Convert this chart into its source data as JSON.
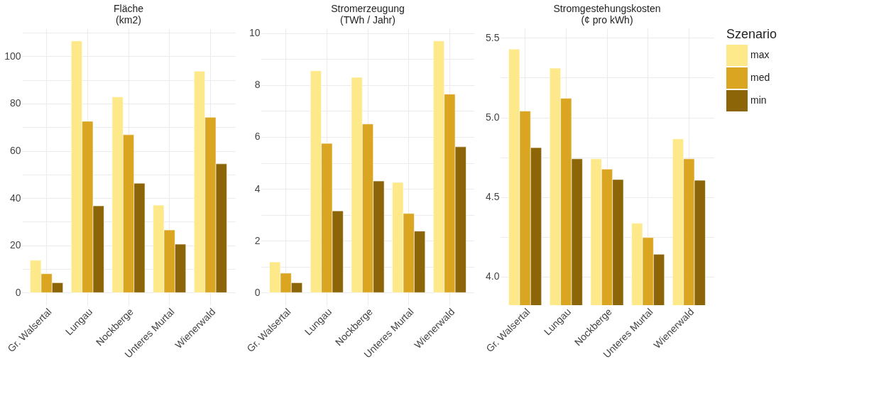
{
  "chart_data": [
    {
      "type": "bar",
      "title": "Fläche\n(km2)",
      "categories": [
        "Gr. Walsertal",
        "Lungau",
        "Nockberge",
        "Unteres Murtal",
        "Wienerwald"
      ],
      "series": [
        {
          "name": "max",
          "color": "#fde98a",
          "values": [
            13.7,
            106.5,
            82.8,
            37,
            93.7
          ]
        },
        {
          "name": "med",
          "color": "#daa520",
          "values": [
            8,
            72.5,
            66.8,
            26.5,
            74.2
          ]
        },
        {
          "name": "min",
          "color": "#8b6508",
          "values": [
            4.2,
            36.7,
            46.3,
            20.5,
            54.5
          ]
        }
      ],
      "ylim": [
        -5.3,
        111.8
      ],
      "yticks": [
        0,
        {
          "value": 10,
          "label": null
        },
        20,
        {
          "value": 30,
          "label": null
        },
        40,
        {
          "value": 50,
          "label": null
        },
        60,
        {
          "value": 70,
          "label": null
        },
        80,
        {
          "value": 90,
          "label": null
        },
        100,
        {
          "value": 110,
          "label": null
        }
      ],
      "grid": true,
      "legend": "right",
      "legend_title": "Szenario"
    },
    {
      "type": "bar",
      "title": "Stromerzeugung\n(TWh / Jahr)",
      "categories": [
        "Gr. Walsertal",
        "Lungau",
        "Nockberge",
        "Unteres Murtal",
        "Wienerwald"
      ],
      "series": [
        {
          "name": "max",
          "color": "#fde98a",
          "values": [
            1.18,
            8.55,
            8.3,
            4.25,
            9.7
          ]
        },
        {
          "name": "med",
          "color": "#daa520",
          "values": [
            0.75,
            5.75,
            6.5,
            3.05,
            7.65
          ]
        },
        {
          "name": "min",
          "color": "#8b6508",
          "values": [
            0.38,
            3.15,
            4.3,
            2.37,
            5.62
          ]
        }
      ],
      "ylim": [
        -0.485,
        10.185
      ],
      "yticks": [
        0,
        {
          "value": 1,
          "label": null
        },
        2,
        {
          "value": 3,
          "label": null
        },
        4,
        {
          "value": 5,
          "label": null
        },
        6,
        {
          "value": 7,
          "label": null
        },
        8,
        {
          "value": 9,
          "label": null
        },
        10
      ],
      "grid": true,
      "legend": "right"
    },
    {
      "type": "bar",
      "title": "Stromgestehungskosten\n(¢ pro kWh)",
      "categories": [
        "Gr. Walsertal",
        "Lungau",
        "Nockberge",
        "Unteres Murtal",
        "Wienerwald"
      ],
      "series": [
        {
          "name": "max",
          "color": "#fde98a",
          "values": [
            5.43,
            5.31,
            4.74,
            4.335,
            4.865
          ]
        },
        {
          "name": "med",
          "color": "#daa520",
          "values": [
            5.04,
            5.12,
            4.675,
            4.245,
            4.74
          ]
        },
        {
          "name": "min",
          "color": "#8b6508",
          "values": [
            4.81,
            4.74,
            4.61,
            4.14,
            4.605
          ]
        }
      ],
      "ylim": [
        3.82,
        5.56
      ],
      "yticks": [
        {
          "value": 4.0,
          "label": "4.0"
        },
        {
          "value": 4.25,
          "label": null
        },
        4.5,
        {
          "value": 4.75,
          "label": null
        },
        {
          "value": 5.0,
          "label": "5.0"
        },
        {
          "value": 5.25,
          "label": null
        },
        5.5
      ],
      "grid": true,
      "legend": "right"
    }
  ]
}
